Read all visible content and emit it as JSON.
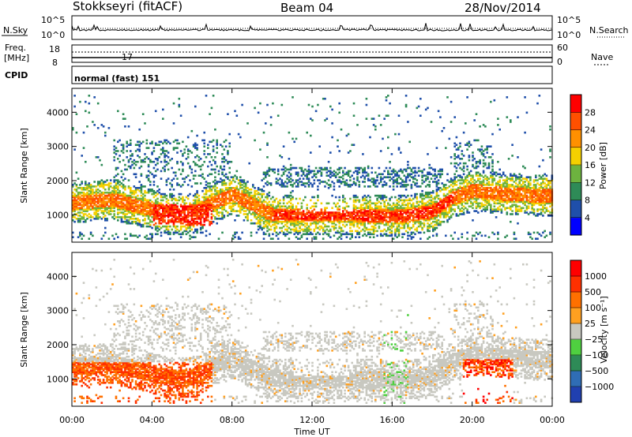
{
  "header": {
    "station": "Stokkseyri (fitACF)",
    "beam": "Beam 04",
    "date": "28/Nov/2014"
  },
  "top_panels": {
    "nsky_label": "N.Sky",
    "nsearch_label": "N.Search",
    "freq_label": "Freq.",
    "freq_unit": "[MHz]",
    "nave_label": "Nave",
    "cpid_label": "CPID",
    "cpid_value": "normal (fast) 151",
    "noise_ticks_left": [
      "10^5",
      "10^0"
    ],
    "noise_ticks_right": [
      "10^5",
      "10^0"
    ],
    "freq_ticks": [
      "18",
      "8"
    ],
    "nave_ticks": [
      "60",
      "0"
    ]
  },
  "colors": {
    "power_scale": [
      "#0000ff",
      "#1f4faa",
      "#2e8b57",
      "#6db33f",
      "#f5d000",
      "#ff9000",
      "#ff5000",
      "#ff0000"
    ],
    "velocity_scale": [
      "#2040b0",
      "#2f6db5",
      "#2e8b57",
      "#4fd040",
      "#c8c8c0",
      "#ffa020",
      "#ff7000",
      "#ff3000",
      "#ff0000"
    ]
  },
  "chart_data": [
    {
      "type": "heatmap",
      "name": "Power",
      "ylabel": "Slant Range [km]",
      "yticks": [
        1000,
        2000,
        3000,
        4000
      ],
      "ylim": [
        200,
        4700
      ],
      "xlim_hours": [
        0,
        24
      ],
      "colorbar_label": "Power [dB]",
      "colorbar_ticks": [
        "28",
        "24",
        "20",
        "16",
        "12",
        "8",
        "4"
      ],
      "colorbar_range": [
        0,
        32
      ]
    },
    {
      "type": "heatmap",
      "name": "Velocity",
      "ylabel": "Slant Range [km]",
      "yticks": [
        1000,
        2000,
        3000,
        4000
      ],
      "ylim": [
        200,
        4700
      ],
      "xlim_hours": [
        0,
        24
      ],
      "colorbar_label": "Velocity [m s⁻¹]",
      "colorbar_ticks": [
        "1000",
        "500",
        "100",
        "25",
        "−25",
        "−100",
        "−500",
        "−1000"
      ]
    }
  ],
  "xaxis": {
    "label": "Time UT",
    "ticks": [
      "00:00",
      "04:00",
      "08:00",
      "12:00",
      "16:00",
      "20:00",
      "00:00"
    ]
  }
}
